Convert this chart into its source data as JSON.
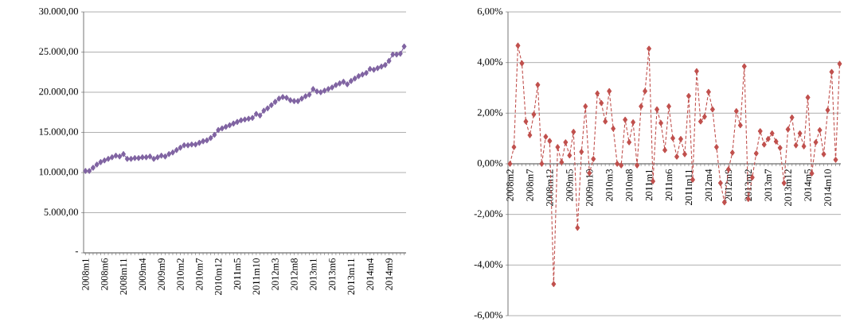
{
  "chart_data": [
    {
      "type": "line",
      "categories": [
        "2008m1",
        null,
        null,
        null,
        null,
        "2008m6",
        null,
        null,
        null,
        null,
        "2008m11",
        null,
        null,
        null,
        null,
        "2009m4",
        null,
        null,
        null,
        null,
        "2009m9",
        null,
        null,
        null,
        null,
        "2010m2",
        null,
        null,
        null,
        null,
        "2010m7",
        null,
        null,
        null,
        null,
        "2010m12",
        null,
        null,
        null,
        null,
        "2011m5",
        null,
        null,
        null,
        null,
        "2011m10",
        null,
        null,
        null,
        null,
        "2012m3",
        null,
        null,
        null,
        null,
        "2012m8",
        null,
        null,
        null,
        null,
        "2013m1",
        null,
        null,
        null,
        null,
        "2013m6",
        null,
        null,
        null,
        null,
        "2013m11",
        null,
        null,
        null,
        null,
        "2014m4",
        null,
        null,
        null,
        null,
        "2014m9",
        null,
        null,
        null,
        null
      ],
      "series": [
        {
          "color": "#8064a2",
          "values": [
            10200,
            10200,
            10600,
            11000,
            11300,
            11500,
            11700,
            11900,
            12100,
            12000,
            12300,
            11700,
            11700,
            11800,
            11800,
            11900,
            11900,
            12000,
            11700,
            11900,
            12100,
            12000,
            12300,
            12500,
            12800,
            13100,
            13400,
            13400,
            13500,
            13500,
            13700,
            13900,
            14000,
            14300,
            14700,
            15300,
            15500,
            15700,
            15900,
            16100,
            16300,
            16500,
            16600,
            16700,
            16800,
            17300,
            17100,
            17700,
            18000,
            18400,
            18800,
            19200,
            19400,
            19300,
            19000,
            18900,
            18900,
            19200,
            19500,
            19700,
            20400,
            20100,
            20000,
            20200,
            20400,
            20600,
            20900,
            21100,
            21300,
            21000,
            21400,
            21700,
            22000,
            22200,
            22400,
            22900,
            22800,
            23000,
            23200,
            23400,
            23900,
            24700,
            24700,
            24800,
            25700
          ]
        }
      ],
      "ylim": [
        0,
        30000
      ],
      "yticks": [
        {
          "value": 0,
          "label": "-"
        },
        {
          "value": 5000,
          "label": "5.000,00"
        },
        {
          "value": 10000,
          "label": "10.000,00"
        },
        {
          "value": 15000,
          "label": "15.000,00"
        },
        {
          "value": 20000,
          "label": "20.000,00"
        },
        {
          "value": 25000,
          "label": "25.000,00"
        },
        {
          "value": 30000,
          "label": "30.000,00"
        }
      ],
      "grid": "y",
      "marker": "diamond",
      "line_style": "solid"
    },
    {
      "type": "line",
      "categories": [
        "2008m2",
        null,
        null,
        null,
        null,
        "2008m7",
        null,
        null,
        null,
        null,
        "2008m12",
        null,
        null,
        null,
        null,
        "2009m5",
        null,
        null,
        null,
        null,
        "2009m10",
        null,
        null,
        null,
        null,
        "2010m3",
        null,
        null,
        null,
        null,
        "2010m8",
        null,
        null,
        null,
        null,
        "2011m1",
        null,
        null,
        null,
        null,
        "2011m6",
        null,
        null,
        null,
        null,
        "2011m11",
        null,
        null,
        null,
        null,
        "2012m4",
        null,
        null,
        null,
        null,
        "2012m9",
        null,
        null,
        null,
        null,
        "2013m2",
        null,
        null,
        null,
        null,
        "2013m7",
        null,
        null,
        null,
        null,
        "2013m12",
        null,
        null,
        null,
        null,
        "2014m5",
        null,
        null,
        null,
        null,
        "2014m10",
        null,
        null,
        null
      ],
      "series": [
        {
          "color": "#c0504d",
          "values": [
            0,
            0.66,
            4.67,
            3.97,
            1.67,
            1.13,
            1.95,
            3.12,
            0,
            1.07,
            0.9,
            -4.75,
            0.66,
            0.06,
            0.85,
            0.33,
            1.26,
            -2.53,
            0.47,
            2.27,
            -0.37,
            0.19,
            2.78,
            2.4,
            1.67,
            2.87,
            1.39,
            0,
            -0.06,
            1.74,
            0.85,
            1.64,
            -0.06,
            2.27,
            2.87,
            4.55,
            -0.69,
            2.15,
            1.61,
            0.54,
            2.27,
            1.01,
            0.28,
            0.98,
            0.38,
            2.68,
            -0.63,
            3.66,
            1.67,
            1.86,
            2.84,
            2.15,
            0.66,
            -0.76,
            -1.52,
            -0.22,
            0.44,
            2.08,
            1.52,
            3.85,
            -1.39,
            -0.54,
            0.41,
            1.29,
            0.76,
            0.98,
            1.2,
            0.88,
            0.63,
            -0.76,
            1.36,
            1.83,
            0.73,
            1.2,
            0.69,
            2.62,
            -0.38,
            0.85,
            1.33,
            0.38,
            2.12,
            3.63,
            0.16,
            3.95
          ]
        }
      ],
      "ylim": [
        -6,
        6
      ],
      "yticks": [
        {
          "value": -6,
          "label": "-6,00%"
        },
        {
          "value": -4,
          "label": "-4,00%"
        },
        {
          "value": -2,
          "label": "-2,00%"
        },
        {
          "value": 0,
          "label": "0,00%"
        },
        {
          "value": 2,
          "label": "2,00%"
        },
        {
          "value": 4,
          "label": "4,00%"
        },
        {
          "value": 6,
          "label": "6,00%"
        }
      ],
      "grid": "y",
      "marker": "diamond",
      "line_style": "dashed"
    }
  ]
}
